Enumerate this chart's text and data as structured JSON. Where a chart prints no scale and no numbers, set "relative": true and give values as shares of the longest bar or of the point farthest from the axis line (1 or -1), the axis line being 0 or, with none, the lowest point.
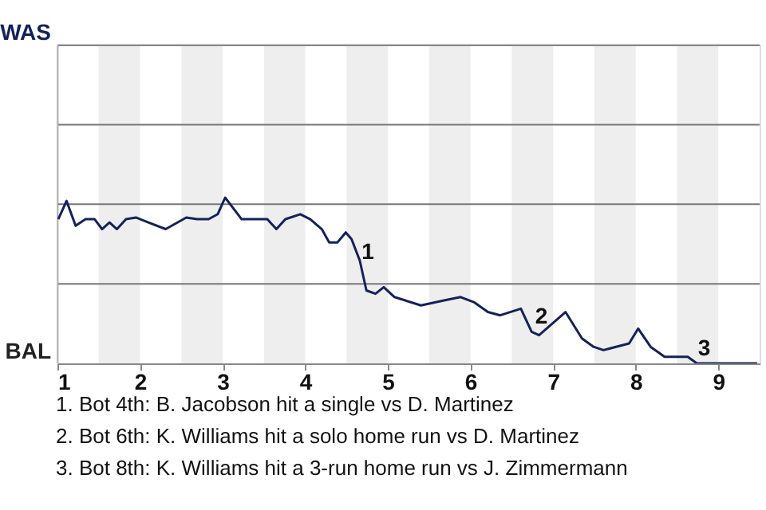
{
  "chart_data": {
    "type": "line",
    "relative": true,
    "x": [
      1.01,
      1.11,
      1.22,
      1.34,
      1.45,
      1.54,
      1.63,
      1.72,
      1.83,
      1.95,
      2.1,
      2.31,
      2.56,
      2.69,
      2.83,
      2.94,
      3.03,
      3.23,
      3.54,
      3.65,
      3.76,
      3.94,
      4.06,
      4.2,
      4.29,
      4.39,
      4.49,
      4.56,
      4.66,
      4.74,
      4.85,
      4.95,
      5.08,
      5.4,
      5.68,
      5.88,
      6.04,
      6.21,
      6.36,
      6.61,
      6.74,
      6.83,
      7.15,
      7.35,
      7.49,
      7.61,
      7.92,
      8.03,
      8.18,
      8.35,
      8.63,
      8.74,
      8.93,
      9.47
    ],
    "series": [
      {
        "color": "#14225a",
        "values": [
          0.87,
          0.98,
          0.83,
          0.87,
          0.87,
          0.81,
          0.85,
          0.81,
          0.87,
          0.88,
          0.85,
          0.81,
          0.88,
          0.87,
          0.87,
          0.9,
          1,
          0.87,
          0.87,
          0.81,
          0.87,
          0.9,
          0.87,
          0.81,
          0.73,
          0.73,
          0.79,
          0.75,
          0.62,
          0.44,
          0.42,
          0.46,
          0.4,
          0.35,
          0.38,
          0.4,
          0.37,
          0.31,
          0.29,
          0.33,
          0.19,
          0.17,
          0.31,
          0.15,
          0.1,
          0.08,
          0.12,
          0.21,
          0.1,
          0.04,
          0.04,
          0,
          0,
          0
        ]
      }
    ],
    "xlim": [
      1,
      9.5
    ],
    "xticks": [
      1,
      2,
      3,
      4,
      5,
      6,
      7,
      8,
      9
    ],
    "ref_lines": [
      {
        "axis": "y",
        "value": 0.48,
        "color": "#777777"
      },
      {
        "axis": "y",
        "value": 0.96,
        "color": "#777777"
      },
      {
        "axis": "y",
        "value": 1.44,
        "color": "#777777"
      },
      {
        "axis": "y",
        "value": 1.92,
        "color": "#777777"
      }
    ],
    "bands": [
      {
        "axis": "x",
        "from": 1.5,
        "to": 2,
        "color": "#eeeeee"
      },
      {
        "axis": "x",
        "from": 2.5,
        "to": 3,
        "color": "#eeeeee"
      },
      {
        "axis": "x",
        "from": 3.5,
        "to": 4,
        "color": "#eeeeee"
      },
      {
        "axis": "x",
        "from": 4.5,
        "to": 5,
        "color": "#eeeeee"
      },
      {
        "axis": "x",
        "from": 5.5,
        "to": 6,
        "color": "#eeeeee"
      },
      {
        "axis": "x",
        "from": 6.5,
        "to": 7,
        "color": "#eeeeee"
      },
      {
        "axis": "x",
        "from": 7.5,
        "to": 8,
        "color": "#eeeeee"
      },
      {
        "axis": "x",
        "from": 8.5,
        "to": 9,
        "color": "#eeeeee"
      }
    ],
    "annotations": [
      "WAS",
      "BAL",
      {
        "text": "1",
        "x": 4.7,
        "y": 0.58
      },
      {
        "text": "2",
        "x": 6.8,
        "y": 0.19
      },
      {
        "text": "3",
        "x": 8.77,
        "y": 0
      },
      "1. Bot 4th: B. Jacobson hit a single vs D. Martinez",
      "2. Bot 6th: K. Williams hit a solo home run vs D. Martinez",
      "3. Bot 8th: K. Williams hit a 3-run home run vs J. Zimmermann"
    ]
  }
}
